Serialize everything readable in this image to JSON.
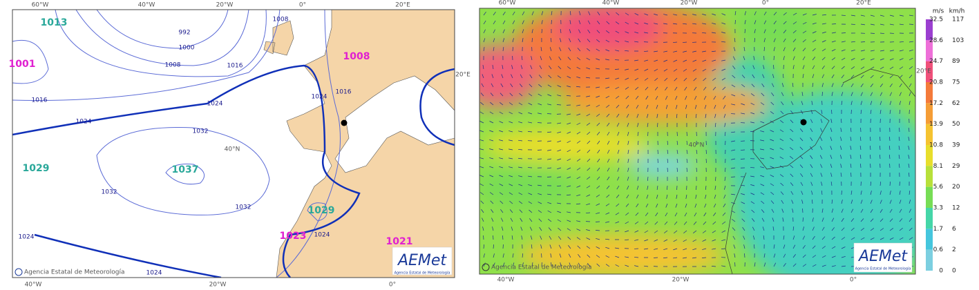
{
  "left_map": {
    "title_lon_top": [
      "60°W",
      "40°W",
      "20°W",
      "0°",
      "20°E"
    ],
    "lon_bottom": [
      "40°W",
      "20°W",
      "0°"
    ],
    "lat_labels": [
      "20°E",
      "40°N"
    ],
    "pressure_centers": [
      "1013",
      "1001",
      "1008",
      "1029",
      "1037",
      "1029",
      "1023",
      "1021"
    ],
    "isobar_labels": [
      "992",
      "1000",
      "1008",
      "1016",
      "1016",
      "1024",
      "1024",
      "1032",
      "1032",
      "1032",
      "1024",
      "1024",
      "1024",
      "1024",
      "1016",
      "1008"
    ],
    "credit": "Agencia Estatal de Meteorología",
    "logo": "AEMet",
    "logo_sub": "Agencia Estatal de Meteorología"
  },
  "right_map": {
    "lon_top": [
      "60°W",
      "40°W",
      "20°W",
      "0°",
      "20°E"
    ],
    "lon_bottom": [
      "40°W",
      "20°W",
      "0°"
    ],
    "lat_labels": [
      "20°E",
      "40°N"
    ],
    "legend": {
      "unit_ms": "m/s",
      "unit_kmh": "km/h",
      "ms": [
        32.5,
        28.6,
        24.7,
        20.8,
        17.2,
        13.9,
        10.8,
        8.1,
        5.6,
        3.3,
        1.7,
        0.6,
        0
      ],
      "kmh": [
        117,
        103,
        89,
        75,
        62,
        50,
        39,
        29,
        20,
        12,
        6,
        2,
        0
      ]
    },
    "credit": "Agencia Estatal de Meteorología",
    "logo": "AEMet",
    "logo_sub": "Agencia Estatal de Meteorología"
  }
}
